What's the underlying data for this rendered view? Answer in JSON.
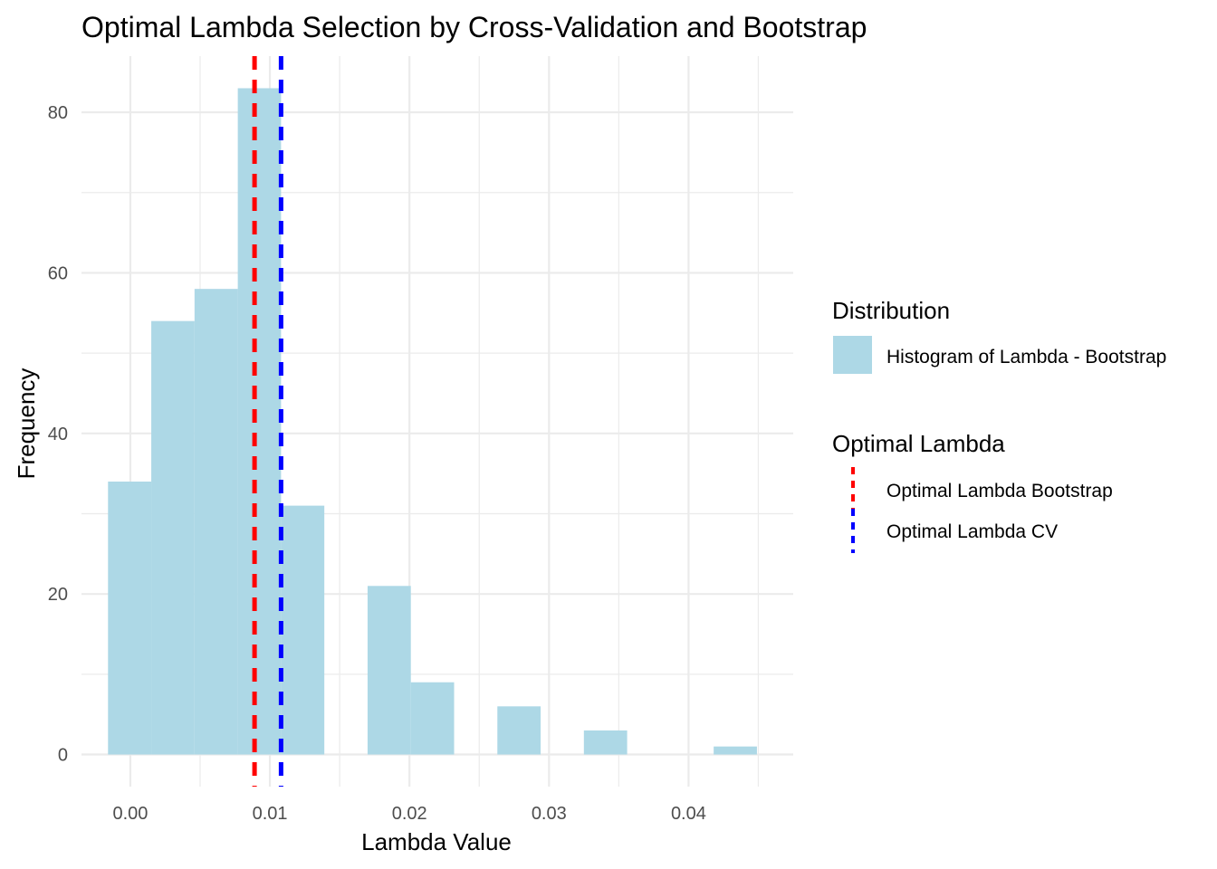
{
  "chart_data": {
    "type": "bar",
    "title": "Optimal Lambda Selection by Cross-Validation and Bootstrap",
    "xlabel": "Lambda Value",
    "ylabel": "Frequency",
    "xlim": [
      -0.0035,
      0.0475
    ],
    "ylim": [
      -4,
      87
    ],
    "x_ticks": [
      {
        "value": 0.0,
        "label": "0.00"
      },
      {
        "value": 0.01,
        "label": "0.01"
      },
      {
        "value": 0.02,
        "label": "0.02"
      },
      {
        "value": 0.03,
        "label": "0.03"
      },
      {
        "value": 0.04,
        "label": "0.04"
      }
    ],
    "y_ticks": [
      {
        "value": 0,
        "label": "0"
      },
      {
        "value": 20,
        "label": "20"
      },
      {
        "value": 40,
        "label": "40"
      },
      {
        "value": 60,
        "label": "60"
      },
      {
        "value": 80,
        "label": "80"
      }
    ],
    "grid": true,
    "histogram": {
      "name": "Histogram of Lambda - Bootstrap",
      "color": "#add8e6",
      "bin_width": 0.0031,
      "bins": [
        {
          "x0": -0.0016,
          "x1": 0.0015,
          "count": 34
        },
        {
          "x0": 0.0015,
          "x1": 0.0046,
          "count": 54
        },
        {
          "x0": 0.0046,
          "x1": 0.0077,
          "count": 58
        },
        {
          "x0": 0.0077,
          "x1": 0.0108,
          "count": 83
        },
        {
          "x0": 0.0108,
          "x1": 0.0139,
          "count": 31
        },
        {
          "x0": 0.0139,
          "x1": 0.017,
          "count": 0
        },
        {
          "x0": 0.017,
          "x1": 0.0201,
          "count": 21
        },
        {
          "x0": 0.0201,
          "x1": 0.0232,
          "count": 9
        },
        {
          "x0": 0.0232,
          "x1": 0.0263,
          "count": 0
        },
        {
          "x0": 0.0263,
          "x1": 0.0294,
          "count": 6
        },
        {
          "x0": 0.0294,
          "x1": 0.0325,
          "count": 0
        },
        {
          "x0": 0.0325,
          "x1": 0.0356,
          "count": 3
        },
        {
          "x0": 0.0356,
          "x1": 0.0387,
          "count": 0
        },
        {
          "x0": 0.0387,
          "x1": 0.0418,
          "count": 0
        },
        {
          "x0": 0.0418,
          "x1": 0.0449,
          "count": 1
        }
      ]
    },
    "vlines": [
      {
        "name": "Optimal Lambda Bootstrap",
        "x": 0.0089,
        "color": "#ff0000",
        "style": "dashed"
      },
      {
        "name": "Optimal Lambda CV",
        "x": 0.0108,
        "color": "#0000ff",
        "style": "dashed"
      }
    ],
    "legend": {
      "placement": "right",
      "groups": [
        {
          "title": "Distribution",
          "items": [
            {
              "label": "Histogram of Lambda - Bootstrap",
              "kind": "fill",
              "color": "#add8e6"
            }
          ]
        },
        {
          "title": "Optimal Lambda",
          "items": [
            {
              "label": "Optimal Lambda Bootstrap",
              "kind": "line",
              "color": "#ff0000"
            },
            {
              "label": "Optimal Lambda CV",
              "kind": "line",
              "color": "#0000ff"
            }
          ]
        }
      ]
    }
  }
}
